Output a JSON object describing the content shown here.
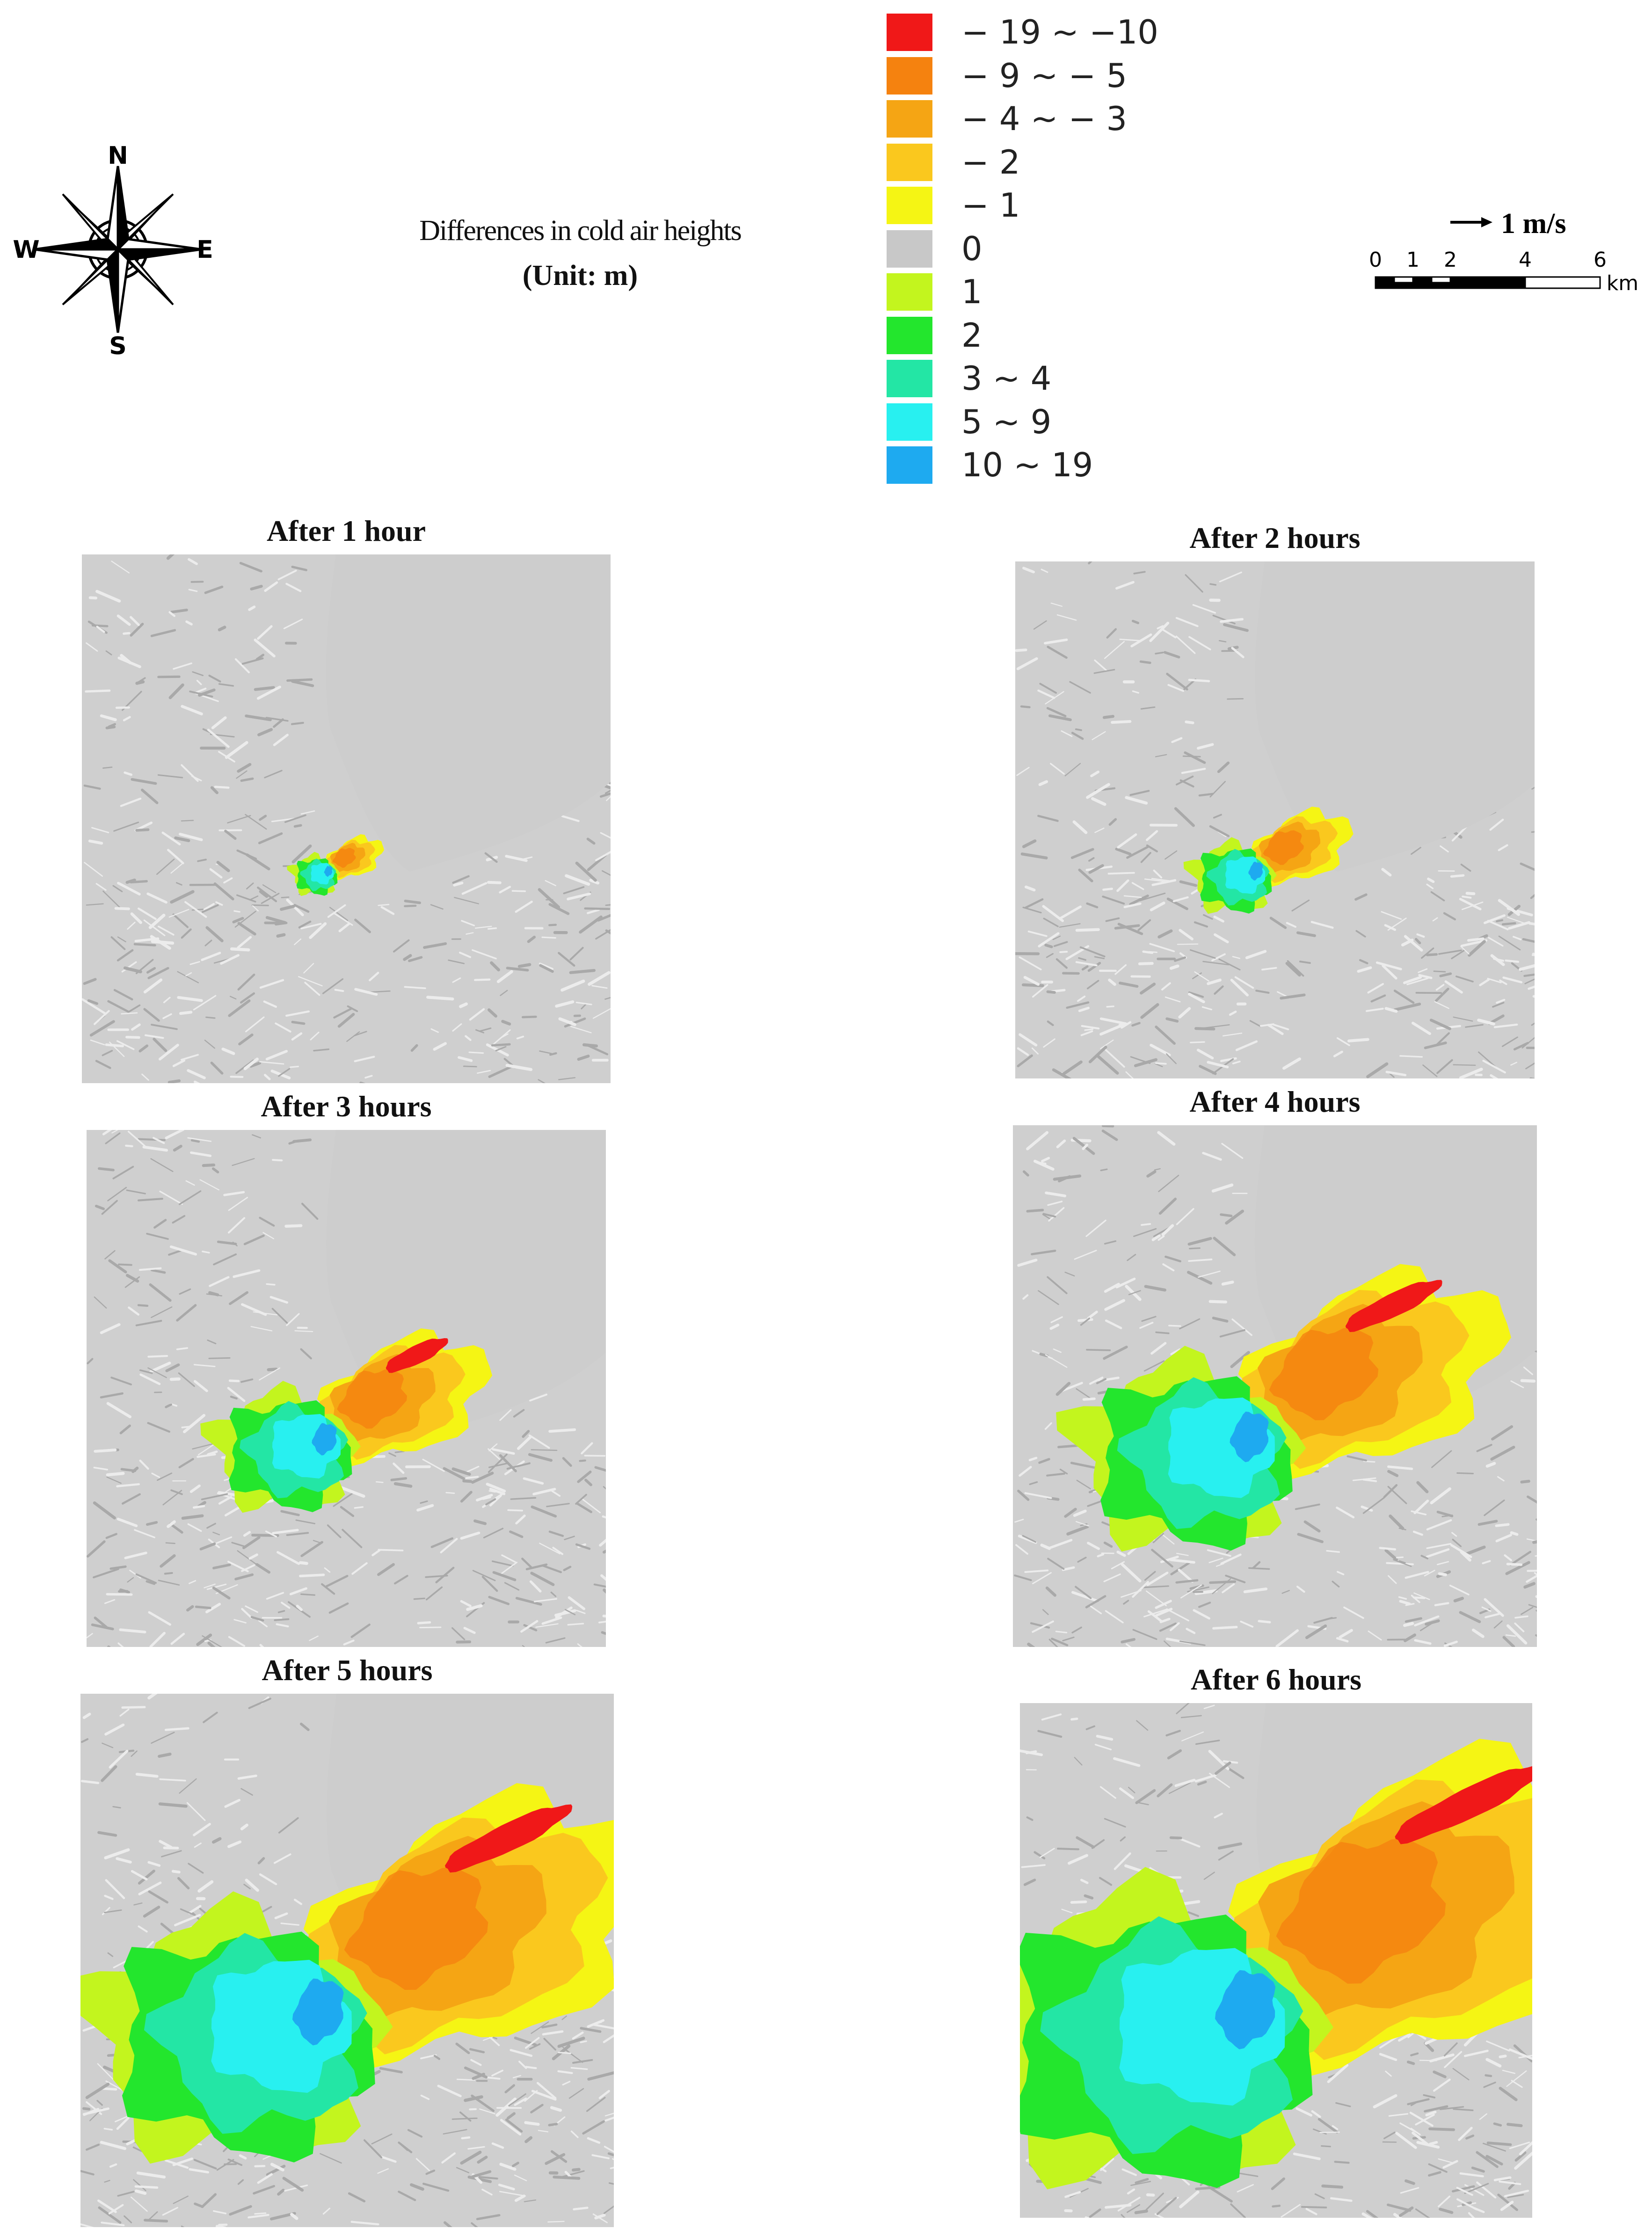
{
  "compass": {
    "n": "N",
    "s": "S",
    "e": "E",
    "w": "W"
  },
  "title": {
    "line1": "Differences in cold air heights",
    "line2": "(Unit: m)"
  },
  "legend": {
    "items": [
      {
        "label": "− 19 ~ −10",
        "color": "#f01818"
      },
      {
        "label": "− 9 ~ − 5",
        "color": "#f5820f"
      },
      {
        "label": "− 4 ~ − 3",
        "color": "#f5a514"
      },
      {
        "label": "− 2",
        "color": "#fac81e"
      },
      {
        "label": "− 1",
        "color": "#f5f514"
      },
      {
        "label": "0",
        "color": "#c8c8c8"
      },
      {
        "label": "1",
        "color": "#c3f51e"
      },
      {
        "label": "2",
        "color": "#23e62d"
      },
      {
        "label": "3 ~ 4",
        "color": "#23e6a5"
      },
      {
        "label": "5 ~ 9",
        "color": "#28f0f0"
      },
      {
        "label": "10 ~ 19",
        "color": "#1eaaf0"
      }
    ]
  },
  "scale": {
    "vector_label": "1 m/s",
    "ticks": [
      "0",
      "1",
      "2",
      "4",
      "6"
    ],
    "unit": "km"
  },
  "panels": [
    {
      "title": "After 1 hour"
    },
    {
      "title": "After 2 hours"
    },
    {
      "title": "After 3 hours"
    },
    {
      "title": "After 4 hours"
    },
    {
      "title": "After 5 hours"
    },
    {
      "title": "After 6 hours"
    }
  ]
}
